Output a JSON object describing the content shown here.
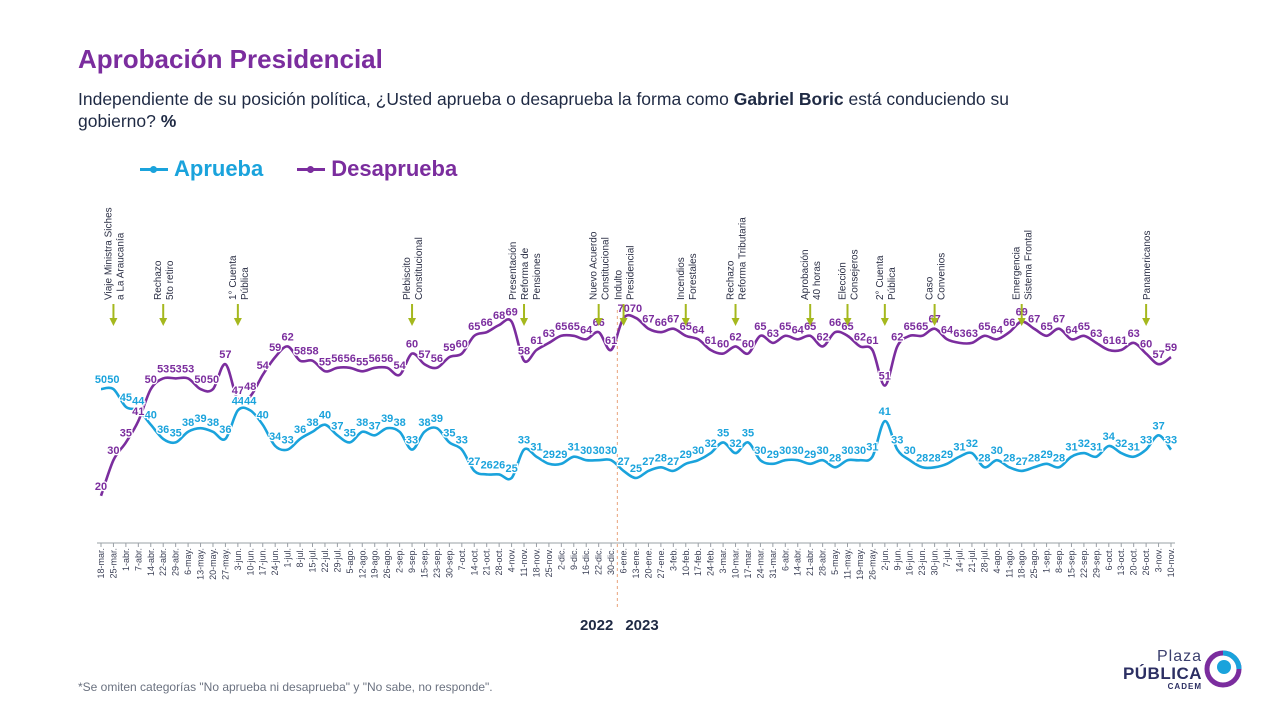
{
  "header": {
    "title": "Aprobación Presidencial",
    "subtitle_pre": "Independiente de su posición política, ¿Usted aprueba o desaprueba la forma como ",
    "subtitle_bold": "Gabriel Boric",
    "subtitle_post": " está conduciendo su gobierno? ",
    "subtitle_pct": "%"
  },
  "legend": {
    "aprueba": "Aprueba",
    "desaprueba": "Desaprueba"
  },
  "colors": {
    "aprueba": "#1aa3dc",
    "desaprueba": "#7b2d9e",
    "title": "#7b2d9e",
    "arrow": "#a5b81e"
  },
  "chart_data": {
    "type": "line",
    "x": [
      "18-mar.",
      "25-mar.",
      "1-abr.",
      "7-abr.",
      "14-abr.",
      "22-abr.",
      "29-abr.",
      "6-may.",
      "13-may.",
      "20-may.",
      "27-may.",
      "3-jun.",
      "10-jun.",
      "17-jun.",
      "24-jun.",
      "1-jul.",
      "8-jul.",
      "15-jul.",
      "22-jul.",
      "29-jul.",
      "5-ago.",
      "12-ago.",
      "19-ago.",
      "26-ago.",
      "2-sep.",
      "9-sep.",
      "15-sep.",
      "23-sep.",
      "30-sep.",
      "7-oct.",
      "14-oct.",
      "21-oct.",
      "28-oct.",
      "4-nov.",
      "11-nov.",
      "18-nov.",
      "25-nov.",
      "2-dic.",
      "9-dic.",
      "16-dic.",
      "22-dic.",
      "30-dic.",
      "6-ene.",
      "13-ene.",
      "20-ene.",
      "27-ene.",
      "3-feb.",
      "10-feb.",
      "17-feb.",
      "24-feb.",
      "3-mar.",
      "10-mar.",
      "17-mar.",
      "24-mar.",
      "31-mar.",
      "6-abr.",
      "14-abr.",
      "21-abr.",
      "28-abr.",
      "5-may.",
      "11-may.",
      "19-may.",
      "26-may.",
      "2-jun.",
      "9-jun.",
      "16-jun.",
      "23-jun.",
      "30-jun.",
      "7-jul.",
      "14-jul.",
      "21-jul.",
      "28-jul.",
      "4-ago.",
      "11-ago.",
      "18-ago.",
      "25-ago.",
      "1-sep.",
      "8-sep.",
      "15-sep.",
      "22-sep.",
      "29-sep.",
      "6-oct.",
      "13-oct.",
      "20-oct.",
      "26-oct.",
      "3-nov.",
      "10-nov."
    ],
    "series": [
      {
        "name": "Aprueba",
        "values": [
          50,
          50,
          45,
          44,
          40,
          36,
          35,
          38,
          39,
          38,
          36,
          44,
          44,
          40,
          34,
          33,
          36,
          38,
          40,
          37,
          35,
          38,
          37,
          39,
          38,
          33,
          38,
          39,
          35,
          33,
          27,
          26,
          26,
          25,
          33,
          31,
          29,
          29,
          31,
          30,
          30,
          30,
          27,
          25,
          27,
          28,
          27,
          29,
          30,
          32,
          35,
          32,
          35,
          30,
          29,
          30,
          30,
          29,
          30,
          28,
          30,
          30,
          31,
          41,
          33,
          30,
          28,
          28,
          29,
          31,
          32,
          28,
          30,
          28,
          27,
          28,
          29,
          28,
          31,
          32,
          31,
          34,
          32,
          31,
          33,
          37,
          33
        ]
      },
      {
        "name": "Desaprueba",
        "values": [
          20,
          30,
          35,
          41,
          50,
          53,
          53,
          53,
          50,
          50,
          57,
          47,
          48,
          54,
          59,
          62,
          58,
          58,
          55,
          56,
          56,
          55,
          56,
          56,
          54,
          60,
          57,
          56,
          59,
          60,
          65,
          66,
          68,
          69,
          58,
          61,
          63,
          65,
          65,
          64,
          66,
          61,
          70,
          70,
          67,
          66,
          67,
          65,
          64,
          61,
          60,
          62,
          60,
          65,
          63,
          65,
          64,
          65,
          62,
          66,
          65,
          62,
          61,
          51,
          62,
          65,
          65,
          67,
          64,
          63,
          63,
          65,
          64,
          66,
          69,
          67,
          65,
          67,
          64,
          65,
          63,
          61,
          61,
          63,
          60,
          57,
          59
        ]
      }
    ],
    "year_labels": [
      "2022",
      "2023"
    ],
    "annotations": [
      {
        "text": [
          "Viaje Ministra Siches",
          "a La Araucanía"
        ],
        "at": 1
      },
      {
        "text": [
          "Rechazo",
          "5to retiro"
        ],
        "at": 5
      },
      {
        "text": [
          "1° Cuenta",
          "Pública"
        ],
        "at": 11
      },
      {
        "text": [
          "Plebiscito",
          "Constitucional"
        ],
        "at": 25
      },
      {
        "text": [
          "Presentación",
          "Reforma de",
          "Pensiones"
        ],
        "at": 34
      },
      {
        "text": [
          "Nuevo Acuerdo",
          "Constitucional"
        ],
        "at": 40
      },
      {
        "text": [
          "Indulto",
          "Presidencial"
        ],
        "at": 42
      },
      {
        "text": [
          "Incendios",
          "Forestales"
        ],
        "at": 47
      },
      {
        "text": [
          "Rechazo",
          "Reforma Tributaria"
        ],
        "at": 51
      },
      {
        "text": [
          "Aprobación",
          "40 horas"
        ],
        "at": 57
      },
      {
        "text": [
          "Elección",
          "Consejeros"
        ],
        "at": 60
      },
      {
        "text": [
          "2° Cuenta",
          "Pública"
        ],
        "at": 63
      },
      {
        "text": [
          "Caso",
          "Convenios"
        ],
        "at": 67
      },
      {
        "text": [
          "Emergencia",
          "Sistema Frontal"
        ],
        "at": 74
      },
      {
        "text": [
          "Panamericanos"
        ],
        "at": 84
      }
    ]
  },
  "footnote": "*Se omiten categorías \"No aprueba ni desaprueba\" y \"No sabe, no responde\".",
  "logo": {
    "line1": "Plaza",
    "line2": "PÚBLICA",
    "line3": "CADEM"
  }
}
